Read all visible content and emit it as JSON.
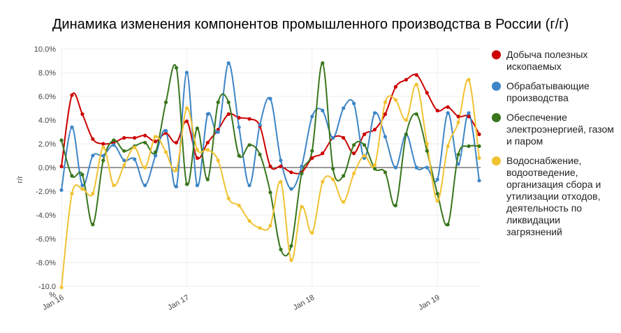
{
  "title": "Динамика изменения компонентов промышленного производства в России (г/г)",
  "chart_data": {
    "type": "line",
    "title": "Динамика изменения компонентов промышленного производства в России (г/г)",
    "ylabel": "г/г",
    "ylim": [
      -10,
      10
    ],
    "yticks": [
      "10.0%",
      "8.0%",
      "6.0%",
      "4.0%",
      "2.0%",
      "0.0%",
      "-2.0%",
      "-4.0%",
      "-6.0%",
      "-8.0%",
      "-10.0\n%"
    ],
    "xticks": [
      {
        "label": "Jan 16",
        "index": 0
      },
      {
        "label": "Jan 17",
        "index": 12
      },
      {
        "label": "Jan 18",
        "index": 24
      },
      {
        "label": "Jan 19",
        "index": 36
      }
    ],
    "x": [
      "2016-01",
      "2016-02",
      "2016-03",
      "2016-04",
      "2016-05",
      "2016-06",
      "2016-07",
      "2016-08",
      "2016-09",
      "2016-10",
      "2016-11",
      "2016-12",
      "2017-01",
      "2017-02",
      "2017-03",
      "2017-04",
      "2017-05",
      "2017-06",
      "2017-07",
      "2017-08",
      "2017-09",
      "2017-10",
      "2017-11",
      "2017-12",
      "2018-01",
      "2018-02",
      "2018-03",
      "2018-04",
      "2018-05",
      "2018-06",
      "2018-07",
      "2018-08",
      "2018-09",
      "2018-10",
      "2018-11",
      "2018-12",
      "2019-01",
      "2019-02",
      "2019-03",
      "2019-04",
      "2019-05"
    ],
    "series": [
      {
        "name": "Добыча полезных ископаемых",
        "color": "#cc0000",
        "values": [
          0.1,
          6.1,
          4.5,
          2.4,
          2.0,
          2.1,
          2.5,
          2.5,
          2.7,
          2.2,
          2.9,
          2.1,
          3.9,
          0.8,
          2.1,
          3.2,
          4.5,
          4.2,
          4.1,
          3.5,
          0.1,
          0.1,
          -0.4,
          -0.4,
          0.8,
          1.2,
          2.5,
          2.5,
          1.2,
          2.8,
          3.2,
          4.5,
          6.8,
          7.4,
          7.8,
          6.3,
          4.8,
          5.1,
          4.3,
          4.3,
          2.8
        ]
      },
      {
        "name": "Обрабатывающие производства",
        "color": "#3d85c6",
        "values": [
          -1.9,
          3.4,
          -1.5,
          1.0,
          1.0,
          1.9,
          0.6,
          0.7,
          -1.5,
          1.0,
          3.1,
          -1.6,
          8.0,
          -1.5,
          4.5,
          3.0,
          8.8,
          3.4,
          -1.5,
          3.6,
          5.8,
          0.6,
          -1.8,
          0.1,
          4.3,
          4.8,
          2.5,
          5.0,
          5.4,
          0.8,
          4.6,
          2.6,
          0.0,
          2.8,
          0.0,
          0.0,
          -1.0,
          4.6,
          0.3,
          4.6,
          -1.1
        ]
      },
      {
        "name": "Обеспечение электроэнергией, газом и паром",
        "color": "#38761d",
        "values": [
          2.3,
          -0.7,
          -0.6,
          -4.8,
          0.6,
          2.3,
          1.4,
          1.8,
          2.1,
          1.3,
          5.5,
          8.4,
          -1.4,
          3.3,
          -1.0,
          5.5,
          5.5,
          1.0,
          1.9,
          1.1,
          -2.1,
          -6.9,
          -6.6,
          -0.5,
          1.4,
          8.8,
          -0.1,
          -0.7,
          1.9,
          1.9,
          -0.1,
          -0.4,
          -3.2,
          2.8,
          4.5,
          1.4,
          -2.2,
          -4.8,
          1.1,
          1.8,
          1.8
        ]
      },
      {
        "name": "Водоснабжение, водоотведение, организация сбора и утилизации отходов, деятельность по ликвидации загрязнений",
        "color": "#f1c232",
        "values": [
          -10.1,
          -2.2,
          -1.8,
          -2.2,
          1.7,
          -1.5,
          0.2,
          1.7,
          0.0,
          2.6,
          1.3,
          -0.2,
          5.0,
          1.5,
          1.5,
          0.6,
          -2.6,
          -3.2,
          -4.5,
          -5.1,
          -4.9,
          -1.2,
          -7.8,
          -3.3,
          -5.5,
          -1.2,
          -1.0,
          -2.9,
          -0.5,
          1.0,
          0.2,
          5.5,
          5.7,
          4.0,
          7.0,
          2.0,
          -2.8,
          1.8,
          3.8,
          7.4,
          0.8
        ]
      }
    ],
    "grid": true,
    "legend": "right"
  }
}
